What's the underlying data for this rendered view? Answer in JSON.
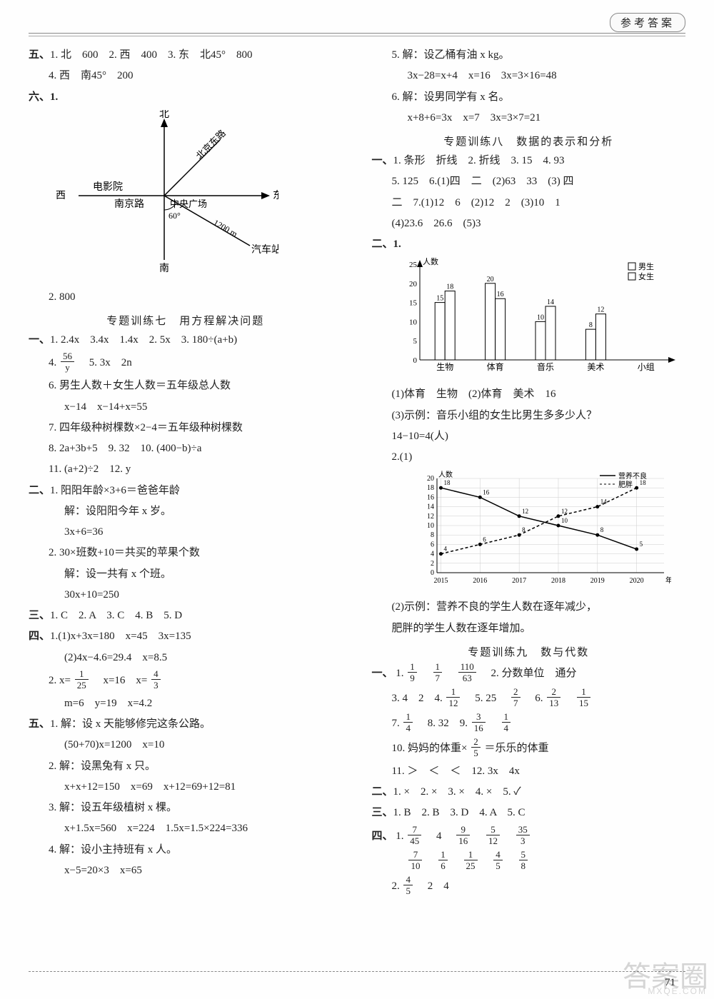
{
  "header": {
    "title": "参考答案"
  },
  "pageNumber": "71",
  "watermark": {
    "big": "答案圈",
    "small": "MXQE.COM"
  },
  "left": {
    "sec5": {
      "label": "五、",
      "i1": "1. 北　600　2. 西　400　3. 东　北45°　800",
      "i4": "4. 西　南45°　200"
    },
    "sec6": {
      "label": "六、1.",
      "compass": {
        "north": "北",
        "south": "南",
        "east": "东",
        "west": "西",
        "cinema": "电影院",
        "road": "南京路",
        "plaza": "中央广场",
        "bjdl": "北京东路",
        "bus": "汽车站",
        "angle": "60°",
        "dist": "1200 m"
      },
      "i2": "2. 800"
    },
    "topic7": {
      "title": "专题训练七　用方程解决问题"
    },
    "t7_1": {
      "label": "一、",
      "l1": "1. 2.4x　3.4x　1.4x　2. 5x　3. 180÷(a+b)",
      "l4a": "4. ",
      "l4_num": "56",
      "l4_den": "y",
      "l4b": "　5. 3x　2n",
      "l6": "6. 男生人数＋女生人数＝五年级总人数",
      "l6b": "x−14　x−14+x=55",
      "l7": "7. 四年级种树棵数×2−4＝五年级种树棵数",
      "l8": "8. 2a+3b+5　9. 32　10. (400−b)÷a",
      "l11": "11. (a+2)÷2　12. y"
    },
    "t7_2": {
      "label": "二、",
      "l1": "1. 阳阳年龄×3+6＝爸爸年龄",
      "l1b": "解：设阳阳今年 x 岁。",
      "l1c": "3x+6=36",
      "l2": "2. 30×班数+10＝共买的苹果个数",
      "l2b": "解：设一共有 x 个班。",
      "l2c": "30x+10=250"
    },
    "t7_3": {
      "label": "三、",
      "l": "1. C　2. A　3. C　4. B　5. D"
    },
    "t7_4": {
      "label": "四、",
      "l1": "1.(1)x+3x=180　x=45　3x=135",
      "l1b": "(2)4x−4.6=29.4　x=8.5",
      "l2a": "2. x=",
      "n1": "1",
      "d1": "25",
      "l2b": "　x=16　x=",
      "n2": "4",
      "d2": "3",
      "l2c": "m=6　y=19　x=4.2"
    },
    "t7_5": {
      "label": "五、",
      "l1": "1. 解：设 x 天能够修完这条公路。",
      "l1b": "(50+70)x=1200　x=10",
      "l2": "2. 解：设黑兔有 x 只。",
      "l2b": "x+x+12=150　x=69　x+12=69+12=81",
      "l3": "3. 解：设五年级植树 x 棵。",
      "l3b": "x+1.5x=560　x=224　1.5x=1.5×224=336",
      "l4": "4. 解：设小主持班有 x 人。",
      "l4b": "x−5=20×3　x=65"
    }
  },
  "right": {
    "t7_5r": {
      "l5": "5. 解：设乙桶有油 x kg。",
      "l5b": "3x−28=x+4　x=16　3x=3×16=48",
      "l6": "6. 解：设男同学有 x 名。",
      "l6b": "x+8+6=3x　x=7　3x=3×7=21"
    },
    "topic8": {
      "title": "专题训练八　数据的表示和分析"
    },
    "t8_1": {
      "label": "一、",
      "l1": "1. 条形　折线　2. 折线　3. 15　4. 93",
      "l2": "5. 125　6.(1)四　二　(2)63　33　(3) 四",
      "l3": "二　7.(1)12　6　(2)12　2　(3)10　1",
      "l4": "(4)23.6　26.6　(5)3"
    },
    "t8_2": {
      "label": "二、1.",
      "chart1": {
        "type": "bar",
        "ylabel": "人数",
        "ylim": [
          0,
          25
        ],
        "ytick_step": 5,
        "categories": [
          "生物",
          "体育",
          "音乐",
          "美术",
          "小组"
        ],
        "series": [
          {
            "name": "男生",
            "color": "#ffffff",
            "border": "#000",
            "values": [
              15,
              20,
              10,
              8,
              null
            ]
          },
          {
            "name": "女生",
            "color": "#ffffff",
            "border": "#000",
            "values": [
              18,
              16,
              14,
              12,
              null
            ]
          }
        ],
        "legend": [
          "男生",
          "女生"
        ],
        "bar_labels": [
          [
            15,
            18
          ],
          [
            20,
            16
          ],
          [
            10,
            14
          ],
          [
            8,
            12
          ]
        ]
      },
      "a1": "(1)体育　生物　(2)体育　美术　16",
      "a2": "(3)示例：音乐小组的女生比男生多多少人？",
      "a3": "14−10=4(人)",
      "c2label": "2.(1)",
      "chart2": {
        "type": "line",
        "ylabel": "人数",
        "ylim": [
          0,
          20
        ],
        "ytick_step": 2,
        "xvals": [
          2015,
          2016,
          2017,
          2018,
          2019,
          2020
        ],
        "xlabel": "年份",
        "series": [
          {
            "name": "营养不良",
            "style": "solid",
            "values": [
              18,
              16,
              12,
              10,
              8,
              5
            ]
          },
          {
            "name": "肥胖",
            "style": "dashed",
            "values": [
              4,
              6,
              8,
              12,
              14,
              18
            ]
          }
        ],
        "legend": [
          "营养不良",
          "肥胖"
        ]
      },
      "a4": "(2)示例：营养不良的学生人数在逐年减少，",
      "a5": "肥胖的学生人数在逐年增加。"
    },
    "topic9": {
      "title": "专题训练九　数与代数"
    },
    "t9_1": {
      "label": "一、",
      "l1pre": "1. ",
      "f1": {
        "n": "1",
        "d": "9"
      },
      "f2": {
        "n": "1",
        "d": "7"
      },
      "f3": {
        "n": "110",
        "d": "63"
      },
      "l1post": "　2. 分数单位　通分",
      "l3pre": "3. 4　2　4. ",
      "f4": {
        "n": "1",
        "d": "12"
      },
      "l3mid": "　5. 25　",
      "f5": {
        "n": "2",
        "d": "7"
      },
      "l3post": "　6. ",
      "f6": {
        "n": "2",
        "d": "13"
      },
      "f7": {
        "n": "1",
        "d": "15"
      },
      "l7pre": "7. ",
      "f8": {
        "n": "1",
        "d": "4"
      },
      "l7mid": "　8. 32　9. ",
      "f9": {
        "n": "3",
        "d": "16"
      },
      "f10": {
        "n": "1",
        "d": "4"
      },
      "l10pre": "10. 妈妈的体重×",
      "f11": {
        "n": "2",
        "d": "5"
      },
      "l10post": "＝乐乐的体重",
      "l11": "11. ＞　＜　＜　12. 3x　4x"
    },
    "t9_2": {
      "label": "二、",
      "l": "1. ×　2. ×　3. ×　4. ×　5. ✓"
    },
    "t9_3": {
      "label": "三、",
      "l": "1. B　2. B　3. D　4. A　5. C"
    },
    "t9_4": {
      "label": "四、",
      "r1pre": "1. ",
      "fa": {
        "n": "7",
        "d": "45"
      },
      "gap1": "　4　",
      "fb": {
        "n": "9",
        "d": "16"
      },
      "fc": {
        "n": "5",
        "d": "12"
      },
      "fd": {
        "n": "35",
        "d": "3"
      },
      "r2": "",
      "fe": {
        "n": "7",
        "d": "10"
      },
      "ff": {
        "n": "1",
        "d": "6"
      },
      "fg": {
        "n": "1",
        "d": "25"
      },
      "fh": {
        "n": "4",
        "d": "5"
      },
      "fi": {
        "n": "5",
        "d": "8"
      },
      "r3pre": "2. ",
      "fj": {
        "n": "4",
        "d": "5"
      },
      "r3post": "　2　4"
    }
  }
}
